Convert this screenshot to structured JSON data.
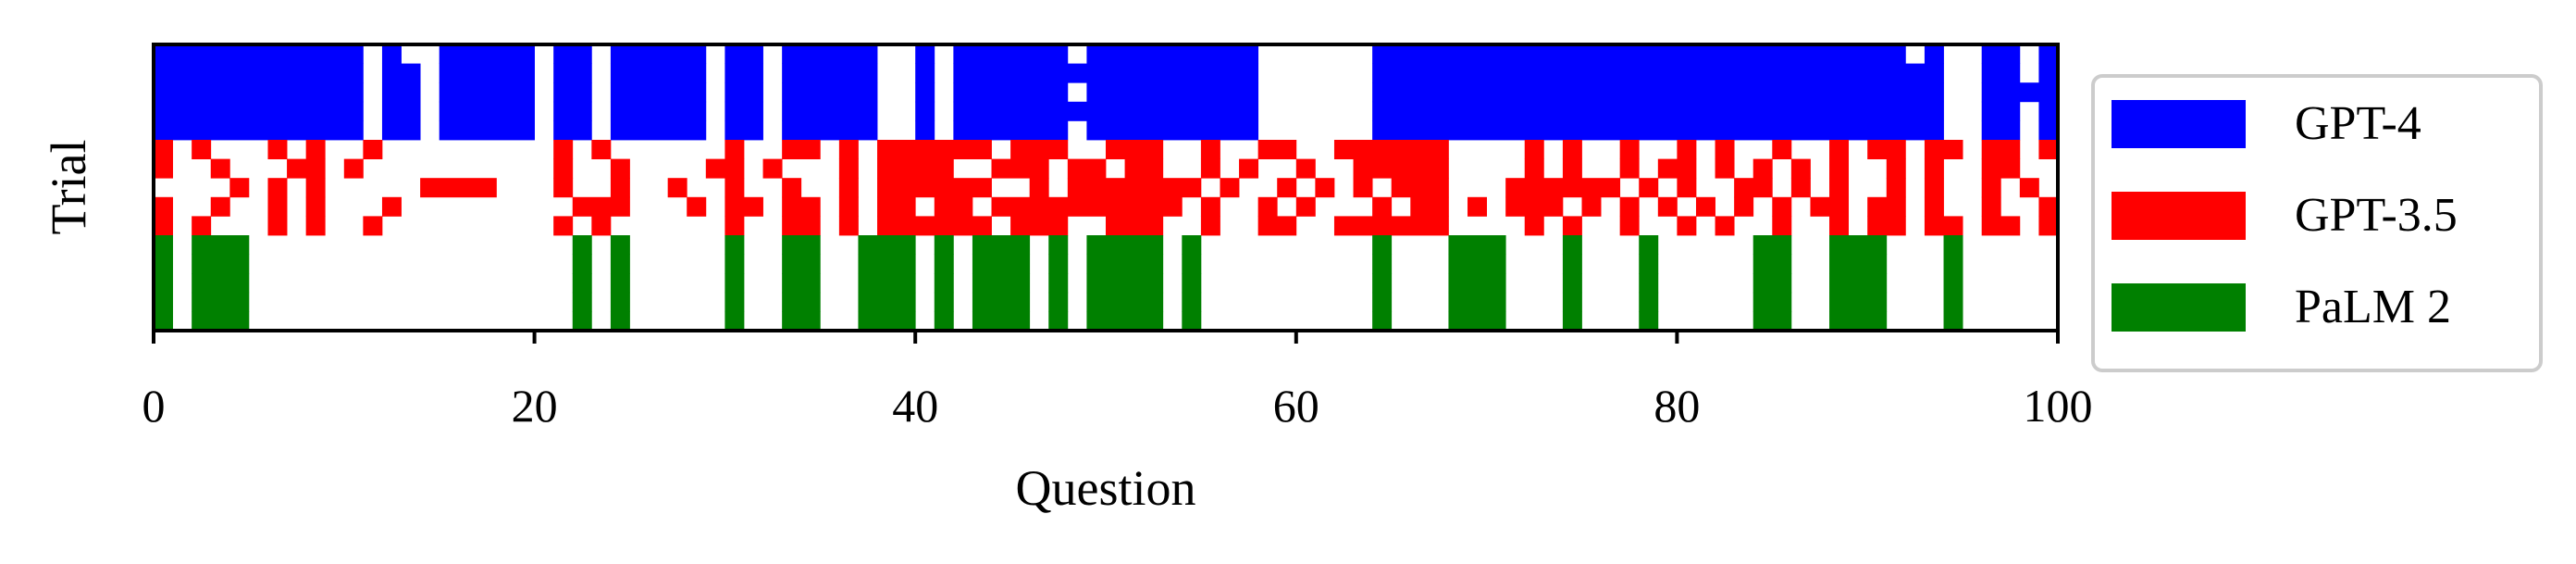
{
  "chart_data": {
    "type": "heatmap",
    "xlabel": "Question",
    "ylabel": "Trial",
    "xlim": [
      0,
      100
    ],
    "xticks": [
      0,
      20,
      40,
      60,
      80,
      100
    ],
    "grid": false,
    "legend_position": "right, outside plot",
    "series": [
      {
        "name": "GPT-4",
        "color": "#0000ff",
        "rows": [
          "1111111111101001111101101111101101111100101111110111111111000000111111111111111111111111111101001101",
          "1111111111101101111101101111101101111100101111111111111111000000111111111111111111111111111111001101",
          "1111111111101101111101101111101101111100101111110111111111000000111111111111111111111111111111001111",
          "1111111111101101111101101111101101111100101111111111111111000000111111111111111111111111111111001101",
          "1111111111101101111101101111101101111100101111110111111111000000111111111111111111111111111111001101"
        ]
      },
      {
        "name": "GPT-3.5",
        "color": "#ff0000",
        "rows": [
          "1010001010010000000001010000001001101011111101110011100100110011111100001010010010100100101101101101",
          "1001000110100000000001001000011010001011110011101101100101001001111100001010010110101010100101001100",
          "0000101010000011110001001001001001001011111100101111111010010101011100011111101010011010100101001010",
          "1001001010001000000000111000101101101011011011111111110100101000101101011101010101010101101101001001",
          "1010001010010000000001010000001001101011111101110011100100110011111100001010010010100100101101101101"
        ]
      },
      {
        "name": "PaLM 2",
        "color": "#008000",
        "rows": [
          "1011100000000000000000101000001001100111010111010111101000000000100011100010001000001100111000100000",
          "1011100000000000000000101000001001100111010111010111101000000000100011100010001000001100111000100000",
          "1011100000000000000000101000001001100111010111010111101000000000100011100010001000001100111000100000",
          "1011100000000000000000101000001001100111010111010111101000000000100011100010001000001100111000100000",
          "1011100000000000000000101000001001100111010111010111101000000000100011100010001000001100111000100000"
        ]
      }
    ]
  }
}
